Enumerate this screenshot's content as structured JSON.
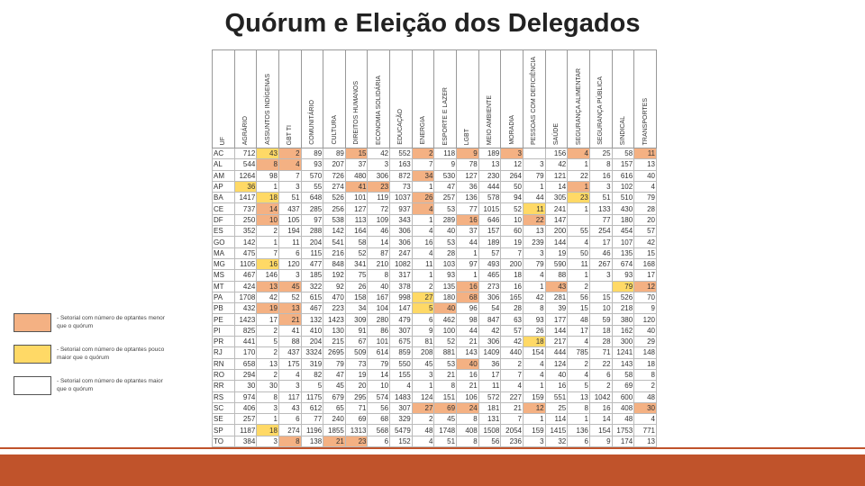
{
  "title": "Quórum e Eleição dos Delegados",
  "legend": [
    {
      "label": "- Setorial com número de optantes menor que o quórum",
      "color": "#f4b183"
    },
    {
      "label": "- Setorial com número de optantes pouco maior que o quórum",
      "color": "#ffd966"
    },
    {
      "label": "- Setorial com número de optantes maior que o quórum",
      "color": "#ffffff"
    }
  ],
  "table": {
    "columns": [
      "UF",
      "AGRÁRIO",
      "ASSUNTOS INDÍGENAS",
      "GBT TI",
      "COMUNITÁRIO",
      "CULTURA",
      "DIREITOS HUMANOS",
      "ECONOMIA SOLIDÁRIA",
      "EDUCAÇÃO",
      "ENERGIA",
      "ESPORTE E LAZER",
      "LGBT",
      "MEIO AMBIENTE",
      "MORADIA",
      "PESSOAS COM DEFICIÊNCIA",
      "SAÚDE",
      "SEGURANÇA ALIMENTAR",
      "SEGURANÇA PÚBLICA",
      "SINDICAL",
      "TRANSPORTES"
    ],
    "rows": [
      {
        "uf": "AC",
        "values": [
          712,
          43,
          2,
          89,
          89,
          15,
          42,
          552,
          2,
          118,
          9,
          189,
          3,
          null,
          156,
          4,
          25,
          58,
          11
        ],
        "shade": "2102202202020220220"
      },
      {
        "uf": "AL",
        "values": [
          544,
          8,
          4,
          93,
          207,
          37,
          3,
          163,
          7,
          9,
          78,
          13,
          12,
          3,
          42,
          1,
          8,
          157,
          13
        ],
        "shade": "2002222222222222222"
      },
      {
        "uf": "AM",
        "values": [
          1264,
          98,
          7,
          570,
          726,
          480,
          306,
          872,
          34,
          530,
          127,
          230,
          264,
          79,
          121,
          22,
          16,
          616,
          40
        ],
        "shade": "2222222202222222222"
      },
      {
        "uf": "AP",
        "values": [
          36,
          1,
          3,
          55,
          274,
          41,
          23,
          73,
          1,
          47,
          36,
          444,
          50,
          1,
          14,
          1,
          3,
          102,
          4
        ],
        "shade": "1222200222222220222"
      },
      {
        "uf": "BA",
        "values": [
          1417,
          18,
          51,
          648,
          526,
          101,
          119,
          1037,
          26,
          257,
          136,
          578,
          94,
          44,
          305,
          23,
          51,
          510,
          79
        ],
        "shade": "2122222202222221222"
      },
      {
        "uf": "CE",
        "values": [
          737,
          14,
          437,
          285,
          256,
          127,
          72,
          937,
          4,
          53,
          77,
          1015,
          52,
          11,
          241,
          1,
          133,
          430,
          28
        ],
        "shade": "2022222202222122222"
      },
      {
        "uf": "DF",
        "values": [
          250,
          10,
          105,
          97,
          538,
          113,
          109,
          343,
          1,
          289,
          16,
          646,
          10,
          22,
          147,
          null,
          77,
          180,
          20
        ],
        "shade": "2022222222022022222"
      },
      {
        "uf": "ES",
        "values": [
          352,
          2,
          194,
          288,
          142,
          164,
          46,
          306,
          4,
          40,
          37,
          157,
          60,
          13,
          200,
          55,
          254,
          454,
          57
        ],
        "shade": "2222222222222222222"
      },
      {
        "uf": "GO",
        "values": [
          142,
          1,
          11,
          204,
          541,
          58,
          14,
          306,
          16,
          53,
          44,
          189,
          19,
          239,
          144,
          4,
          17,
          107,
          42
        ],
        "shade": "2222222222222222222"
      },
      {
        "uf": "MA",
        "values": [
          475,
          7,
          6,
          115,
          216,
          52,
          87,
          247,
          4,
          28,
          1,
          57,
          7,
          3,
          19,
          50,
          46,
          135,
          15
        ],
        "shade": "2222222222222222222"
      },
      {
        "uf": "MG",
        "values": [
          1105,
          16,
          120,
          477,
          848,
          341,
          210,
          1082,
          11,
          103,
          97,
          493,
          200,
          79,
          590,
          11,
          267,
          674,
          168
        ],
        "shade": "2122222222222222222"
      },
      {
        "uf": "MS",
        "values": [
          467,
          146,
          3,
          185,
          192,
          75,
          8,
          317,
          1,
          93,
          1,
          465,
          18,
          4,
          88,
          1,
          3,
          93,
          17
        ],
        "shade": "2222222222222222222"
      },
      {
        "uf": "MT",
        "values": [
          424,
          13,
          45,
          322,
          92,
          26,
          40,
          378,
          2,
          135,
          16,
          273,
          16,
          1,
          43,
          2,
          null,
          79,
          12
        ],
        "shade": "2002222222022202210"
      },
      {
        "uf": "PA",
        "values": [
          1708,
          42,
          52,
          615,
          470,
          158,
          167,
          998,
          27,
          180,
          68,
          306,
          165,
          42,
          281,
          56,
          15,
          526,
          70
        ],
        "shade": "2222222212022222222"
      },
      {
        "uf": "PB",
        "values": [
          432,
          19,
          13,
          467,
          223,
          34,
          104,
          147,
          5,
          40,
          96,
          54,
          28,
          8,
          39,
          15,
          10,
          218,
          9
        ],
        "shade": "2002222210222222222"
      },
      {
        "uf": "PE",
        "values": [
          1423,
          17,
          21,
          132,
          1423,
          309,
          280,
          479,
          6,
          462,
          98,
          847,
          63,
          93,
          177,
          48,
          59,
          380,
          120
        ],
        "shade": "2202222222222222222"
      },
      {
        "uf": "PI",
        "values": [
          825,
          2,
          41,
          410,
          130,
          91,
          86,
          307,
          9,
          100,
          44,
          42,
          57,
          26,
          144,
          17,
          18,
          162,
          40
        ],
        "shade": "2222222222222222222"
      },
      {
        "uf": "PR",
        "values": [
          441,
          5,
          88,
          204,
          215,
          67,
          101,
          675,
          81,
          52,
          21,
          306,
          42,
          18,
          217,
          4,
          28,
          300,
          29
        ],
        "shade": "2222222222222122222"
      },
      {
        "uf": "RJ",
        "values": [
          170,
          2,
          437,
          3324,
          2695,
          509,
          614,
          859,
          208,
          881,
          143,
          1409,
          440,
          154,
          444,
          785,
          71,
          1241,
          148
        ],
        "shade": "2222222222222222222"
      },
      {
        "uf": "RN",
        "values": [
          658,
          13,
          175,
          319,
          79,
          73,
          79,
          550,
          45,
          53,
          40,
          36,
          2,
          4,
          124,
          2,
          22,
          143,
          18
        ],
        "shade": "2222222222022222222"
      },
      {
        "uf": "RO",
        "values": [
          294,
          2,
          4,
          82,
          47,
          19,
          14,
          155,
          3,
          21,
          16,
          17,
          7,
          4,
          40,
          4,
          6,
          58,
          8
        ],
        "shade": "2222222222222222222"
      },
      {
        "uf": "RR",
        "values": [
          30,
          30,
          3,
          5,
          45,
          20,
          10,
          4,
          1,
          8,
          21,
          11,
          4,
          1,
          16,
          5,
          2,
          69,
          2
        ],
        "shade": "2222222222222222222"
      },
      {
        "uf": "RS",
        "values": [
          974,
          8,
          117,
          1175,
          679,
          295,
          574,
          1483,
          124,
          151,
          106,
          572,
          227,
          159,
          551,
          13,
          1042,
          600,
          48
        ],
        "shade": "2222222222222222222"
      },
      {
        "uf": "SC",
        "values": [
          406,
          3,
          43,
          612,
          65,
          71,
          56,
          307,
          27,
          69,
          24,
          181,
          21,
          12,
          25,
          8,
          16,
          408,
          30
        ],
        "shade": "2222222200022022220"
      },
      {
        "uf": "SE",
        "values": [
          257,
          1,
          6,
          77,
          240,
          69,
          68,
          329,
          2,
          45,
          8,
          131,
          7,
          1,
          114,
          1,
          14,
          48,
          4
        ],
        "shade": "2222222222222222222"
      },
      {
        "uf": "SP",
        "values": [
          1187,
          18,
          274,
          1196,
          1855,
          1313,
          568,
          5479,
          48,
          1748,
          408,
          1508,
          2054,
          159,
          1415,
          136,
          154,
          1753,
          771
        ],
        "shade": "2122222222222222222"
      },
      {
        "uf": "TO",
        "values": [
          384,
          3,
          8,
          138,
          21,
          23,
          6,
          152,
          4,
          51,
          8,
          56,
          236,
          3,
          32,
          6,
          9,
          174,
          13
        ],
        "shade": "2202002222222222222"
      }
    ]
  }
}
